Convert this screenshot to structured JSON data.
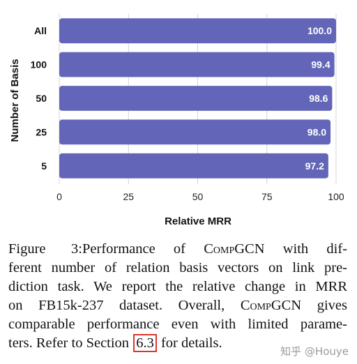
{
  "chart_data": {
    "type": "bar",
    "orientation": "horizontal",
    "categories": [
      "All",
      "100",
      "50",
      "25",
      "5"
    ],
    "values": [
      100.0,
      99.4,
      98.6,
      98.0,
      97.2
    ],
    "value_labels": [
      "100.0",
      "99.4",
      "98.6",
      "98.0",
      "97.2"
    ],
    "xlabel": "Relative MRR",
    "ylabel": "Number of Basis",
    "xlim": [
      0,
      100
    ],
    "xticks": [
      0,
      25,
      50,
      75,
      100
    ],
    "grid": true,
    "bar_color": "#6366b8"
  },
  "caption": {
    "figure_label": "Figure 3:",
    "line1a": "Performance of ",
    "model_name": "CompGCN",
    "line1b": " with dif-",
    "line2": "ferent number of relation basis vectors on link pre-",
    "line3": "diction task. We report the relative change in MRR",
    "line4a": "on FB15k-237 dataset. Overall, ",
    "model_name2": "CompGCN",
    "line4b": " gives",
    "line5": "comparable performance even with limited parame-",
    "line6a": "ters. Refer to Section ",
    "section_ref": "6.3",
    "line6b": " for details."
  },
  "watermark": "知乎 @Houye"
}
